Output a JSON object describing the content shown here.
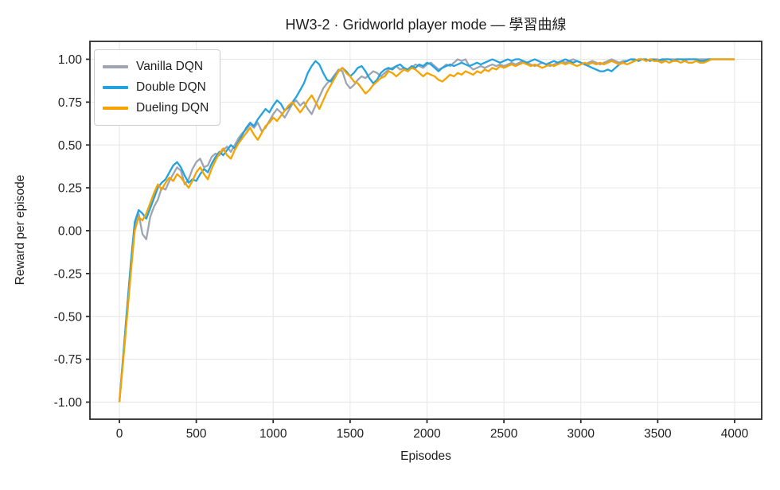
{
  "chart_data": {
    "type": "line",
    "title": "HW3-2 · Gridworld player mode — 學習曲線",
    "xlabel": "Episodes",
    "ylabel": "Reward per episode",
    "xlim": [
      -190,
      4175
    ],
    "ylim": [
      -1.1,
      1.1
    ],
    "xticks": [
      0,
      500,
      1000,
      1500,
      2000,
      2500,
      3000,
      3500,
      4000
    ],
    "yticks": [
      -1.0,
      -0.75,
      -0.5,
      -0.25,
      0.0,
      0.25,
      0.5,
      0.75,
      1.0
    ],
    "ytick_labels": [
      "-1.00",
      "-0.75",
      "-0.50",
      "-0.25",
      "0.00",
      "0.25",
      "0.50",
      "0.75",
      "1.00"
    ],
    "grid": true,
    "grid_color": "#e6e6e6",
    "spine_color": "#2b2b2b",
    "legend_position": "upper-left",
    "x": [
      0,
      25,
      50,
      75,
      100,
      125,
      150,
      175,
      200,
      225,
      250,
      275,
      300,
      325,
      350,
      375,
      400,
      425,
      450,
      475,
      500,
      525,
      550,
      575,
      600,
      625,
      650,
      675,
      700,
      725,
      750,
      775,
      800,
      825,
      850,
      875,
      900,
      925,
      950,
      975,
      1000,
      1025,
      1050,
      1075,
      1100,
      1125,
      1150,
      1175,
      1200,
      1225,
      1250,
      1275,
      1300,
      1325,
      1350,
      1375,
      1400,
      1425,
      1450,
      1475,
      1500,
      1525,
      1550,
      1575,
      1600,
      1625,
      1650,
      1675,
      1700,
      1725,
      1750,
      1775,
      1800,
      1825,
      1850,
      1875,
      1900,
      1925,
      1950,
      1975,
      2000,
      2025,
      2050,
      2075,
      2100,
      2125,
      2150,
      2175,
      2200,
      2225,
      2250,
      2275,
      2300,
      2325,
      2350,
      2375,
      2400,
      2425,
      2450,
      2475,
      2500,
      2525,
      2550,
      2575,
      2600,
      2625,
      2650,
      2675,
      2700,
      2725,
      2750,
      2775,
      2800,
      2825,
      2850,
      2875,
      2900,
      2925,
      2950,
      2975,
      3000,
      3025,
      3050,
      3075,
      3100,
      3125,
      3150,
      3175,
      3200,
      3225,
      3250,
      3275,
      3300,
      3325,
      3350,
      3375,
      3400,
      3425,
      3450,
      3475,
      3500,
      3525,
      3550,
      3575,
      3600,
      3625,
      3650,
      3675,
      3700,
      3725,
      3750,
      3775,
      3800,
      3825,
      3850,
      3875,
      3900,
      3925,
      3950,
      3975,
      4000
    ],
    "series": [
      {
        "name": "Vanilla DQN",
        "color": "#9da4b2",
        "values": [
          -1.0,
          -0.74,
          -0.46,
          -0.2,
          0.04,
          0.1,
          -0.02,
          -0.05,
          0.08,
          0.14,
          0.18,
          0.25,
          0.24,
          0.29,
          0.33,
          0.37,
          0.35,
          0.27,
          0.3,
          0.36,
          0.4,
          0.42,
          0.37,
          0.38,
          0.43,
          0.45,
          0.44,
          0.47,
          0.49,
          0.46,
          0.5,
          0.54,
          0.57,
          0.59,
          0.62,
          0.6,
          0.63,
          0.58,
          0.6,
          0.64,
          0.68,
          0.71,
          0.69,
          0.66,
          0.7,
          0.74,
          0.76,
          0.73,
          0.75,
          0.71,
          0.68,
          0.73,
          0.78,
          0.83,
          0.86,
          0.88,
          0.91,
          0.94,
          0.93,
          0.86,
          0.83,
          0.85,
          0.88,
          0.9,
          0.89,
          0.91,
          0.93,
          0.92,
          0.9,
          0.92,
          0.94,
          0.95,
          0.96,
          0.94,
          0.95,
          0.93,
          0.95,
          0.97,
          0.96,
          0.95,
          0.97,
          0.98,
          0.96,
          0.94,
          0.95,
          0.97,
          0.96,
          0.98,
          1.0,
          0.99,
          1.0,
          0.96,
          0.94,
          0.95,
          0.96,
          0.95,
          0.96,
          0.97,
          0.96,
          0.97,
          0.96,
          0.97,
          0.98,
          0.97,
          0.98,
          0.99,
          0.98,
          0.97,
          0.96,
          0.97,
          0.98,
          0.97,
          0.96,
          0.97,
          0.98,
          0.99,
          0.98,
          0.99,
          1.0,
          0.99,
          0.98,
          0.97,
          0.98,
          0.99,
          0.98,
          0.97,
          0.98,
          0.99,
          1.0,
          0.99,
          0.98,
          0.99,
          0.99,
          1.0,
          0.99,
          1.0,
          1.0,
          0.99,
          1.0,
          1.0,
          1.0,
          0.99,
          1.0,
          1.0,
          1.0,
          1.0,
          1.0,
          0.99,
          1.0,
          1.0,
          1.0,
          1.0,
          1.0,
          1.0,
          1.0,
          1.0,
          1.0,
          1.0,
          1.0,
          1.0,
          1.0
        ]
      },
      {
        "name": "Double DQN",
        "color": "#22a2de",
        "values": [
          -1.0,
          -0.73,
          -0.45,
          -0.18,
          0.05,
          0.12,
          0.1,
          0.07,
          0.13,
          0.19,
          0.25,
          0.28,
          0.3,
          0.34,
          0.38,
          0.4,
          0.37,
          0.32,
          0.28,
          0.3,
          0.29,
          0.33,
          0.36,
          0.34,
          0.39,
          0.43,
          0.46,
          0.44,
          0.47,
          0.5,
          0.48,
          0.52,
          0.56,
          0.6,
          0.63,
          0.61,
          0.65,
          0.68,
          0.71,
          0.69,
          0.73,
          0.76,
          0.74,
          0.7,
          0.72,
          0.75,
          0.78,
          0.82,
          0.86,
          0.92,
          0.96,
          0.99,
          0.97,
          0.92,
          0.88,
          0.87,
          0.9,
          0.93,
          0.95,
          0.93,
          0.9,
          0.92,
          0.95,
          0.96,
          0.93,
          0.89,
          0.86,
          0.88,
          0.92,
          0.94,
          0.95,
          0.94,
          0.96,
          0.97,
          0.95,
          0.94,
          0.96,
          0.95,
          0.97,
          0.96,
          0.98,
          0.97,
          0.95,
          0.93,
          0.95,
          0.96,
          0.97,
          0.96,
          0.97,
          0.98,
          0.97,
          0.96,
          0.97,
          0.98,
          0.97,
          0.98,
          0.99,
          1.0,
          0.99,
          0.98,
          0.99,
          1.0,
          0.99,
          1.0,
          1.0,
          0.99,
          0.98,
          0.99,
          1.0,
          0.99,
          0.98,
          0.97,
          0.98,
          0.99,
          0.98,
          0.99,
          1.0,
          0.99,
          0.98,
          0.99,
          0.98,
          0.97,
          0.96,
          0.95,
          0.94,
          0.93,
          0.93,
          0.94,
          0.93,
          0.95,
          0.97,
          0.98,
          0.99,
          1.0,
          1.0,
          0.99,
          1.0,
          1.0,
          0.99,
          1.0,
          0.99,
          1.0,
          1.0,
          1.0,
          0.99,
          1.0,
          1.0,
          1.0,
          1.0,
          1.0,
          1.0,
          0.99,
          0.99,
          1.0,
          1.0,
          1.0,
          1.0,
          1.0,
          1.0,
          1.0,
          1.0
        ]
      },
      {
        "name": "Dueling DQN",
        "color": "#f6a301",
        "values": [
          -1.0,
          -0.76,
          -0.5,
          -0.24,
          0.0,
          0.08,
          0.06,
          0.1,
          0.16,
          0.22,
          0.27,
          0.24,
          0.28,
          0.31,
          0.29,
          0.33,
          0.31,
          0.28,
          0.25,
          0.29,
          0.34,
          0.37,
          0.33,
          0.3,
          0.36,
          0.41,
          0.45,
          0.48,
          0.44,
          0.42,
          0.47,
          0.51,
          0.54,
          0.57,
          0.6,
          0.56,
          0.53,
          0.57,
          0.61,
          0.63,
          0.66,
          0.64,
          0.67,
          0.7,
          0.73,
          0.75,
          0.72,
          0.69,
          0.72,
          0.76,
          0.79,
          0.75,
          0.71,
          0.76,
          0.81,
          0.85,
          0.89,
          0.93,
          0.95,
          0.92,
          0.9,
          0.87,
          0.86,
          0.83,
          0.8,
          0.82,
          0.85,
          0.87,
          0.89,
          0.9,
          0.93,
          0.92,
          0.9,
          0.92,
          0.94,
          0.93,
          0.95,
          0.94,
          0.92,
          0.9,
          0.92,
          0.91,
          0.9,
          0.88,
          0.87,
          0.89,
          0.91,
          0.9,
          0.92,
          0.91,
          0.93,
          0.92,
          0.91,
          0.93,
          0.92,
          0.94,
          0.93,
          0.95,
          0.94,
          0.96,
          0.95,
          0.96,
          0.97,
          0.96,
          0.97,
          0.98,
          0.97,
          0.96,
          0.97,
          0.96,
          0.95,
          0.96,
          0.97,
          0.96,
          0.97,
          0.98,
          0.97,
          0.98,
          0.97,
          0.96,
          0.97,
          0.98,
          0.97,
          0.98,
          0.97,
          0.98,
          0.97,
          0.98,
          0.99,
          0.98,
          0.97,
          0.98,
          0.97,
          0.98,
          0.99,
          1.0,
          1.0,
          0.99,
          1.0,
          0.99,
          0.99,
          0.98,
          0.99,
          0.98,
          0.99,
          0.99,
          0.98,
          0.99,
          0.98,
          0.98,
          0.99,
          0.98,
          0.98,
          0.99,
          1.0,
          1.0,
          1.0,
          1.0,
          1.0,
          1.0,
          1.0
        ]
      }
    ]
  }
}
